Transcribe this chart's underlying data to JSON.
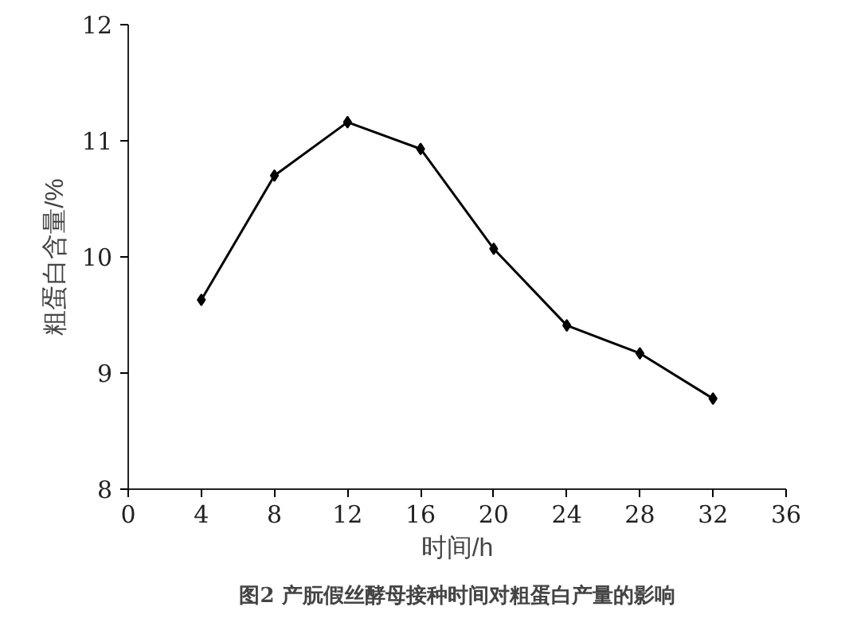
{
  "chart_data": {
    "type": "line",
    "xlabel": "时间/h",
    "ylabel": "粗蛋白含量/%",
    "annotations": [
      "图2 产朊假丝酵母接种时间对粗蛋白产量的影响"
    ],
    "x": [
      4,
      8,
      12,
      16,
      20,
      24,
      28,
      32
    ],
    "series": [
      {
        "color": "#000000",
        "values": [
          9.63,
          10.7,
          11.16,
          10.93,
          10.07,
          9.41,
          9.17,
          8.78
        ]
      }
    ],
    "xlim": [
      0,
      36
    ],
    "xticks": [
      0,
      4,
      8,
      12,
      16,
      20,
      24,
      28,
      32,
      36
    ],
    "ylim": [
      8,
      12
    ],
    "yticks": [
      8,
      9,
      10,
      11,
      12
    ],
    "grid": false,
    "marker": "diamond",
    "line_style": "solid"
  }
}
